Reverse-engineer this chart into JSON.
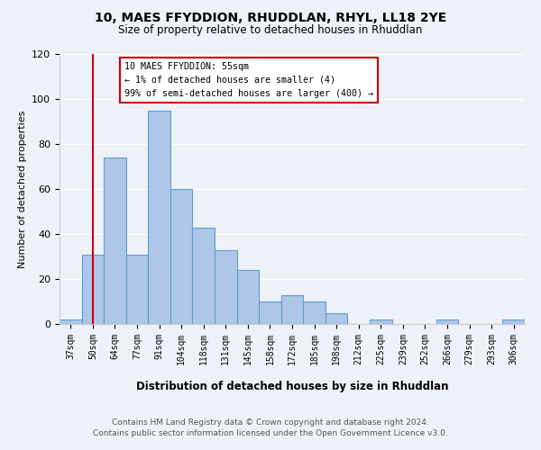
{
  "title": "10, MAES FFYDDION, RHUDDLAN, RHYL, LL18 2YE",
  "subtitle": "Size of property relative to detached houses in Rhuddlan",
  "xlabel": "Distribution of detached houses by size in Rhuddlan",
  "ylabel": "Number of detached properties",
  "categories": [
    "37sqm",
    "50sqm",
    "64sqm",
    "77sqm",
    "91sqm",
    "104sqm",
    "118sqm",
    "131sqm",
    "145sqm",
    "158sqm",
    "172sqm",
    "185sqm",
    "198sqm",
    "212sqm",
    "225sqm",
    "239sqm",
    "252sqm",
    "266sqm",
    "279sqm",
    "293sqm",
    "306sqm"
  ],
  "values": [
    2,
    31,
    74,
    31,
    95,
    60,
    43,
    33,
    24,
    10,
    13,
    10,
    5,
    0,
    2,
    0,
    0,
    2,
    0,
    0,
    2
  ],
  "bar_color": "#aec6e8",
  "bar_edge_color": "#5a9fd4",
  "ylim": [
    0,
    120
  ],
  "yticks": [
    0,
    20,
    40,
    60,
    80,
    100,
    120
  ],
  "vline_x": 1,
  "vline_color": "#cc0000",
  "annotation_text": "10 MAES FFYDDION: 55sqm\n← 1% of detached houses are smaller (4)\n99% of semi-detached houses are larger (400) →",
  "annotation_box_color": "#ffffff",
  "annotation_box_edge": "#cc0000",
  "footer_line1": "Contains HM Land Registry data © Crown copyright and database right 2024.",
  "footer_line2": "Contains public sector information licensed under the Open Government Licence v3.0.",
  "background_color": "#eef2f8",
  "plot_bg_color": "#eef2f8"
}
